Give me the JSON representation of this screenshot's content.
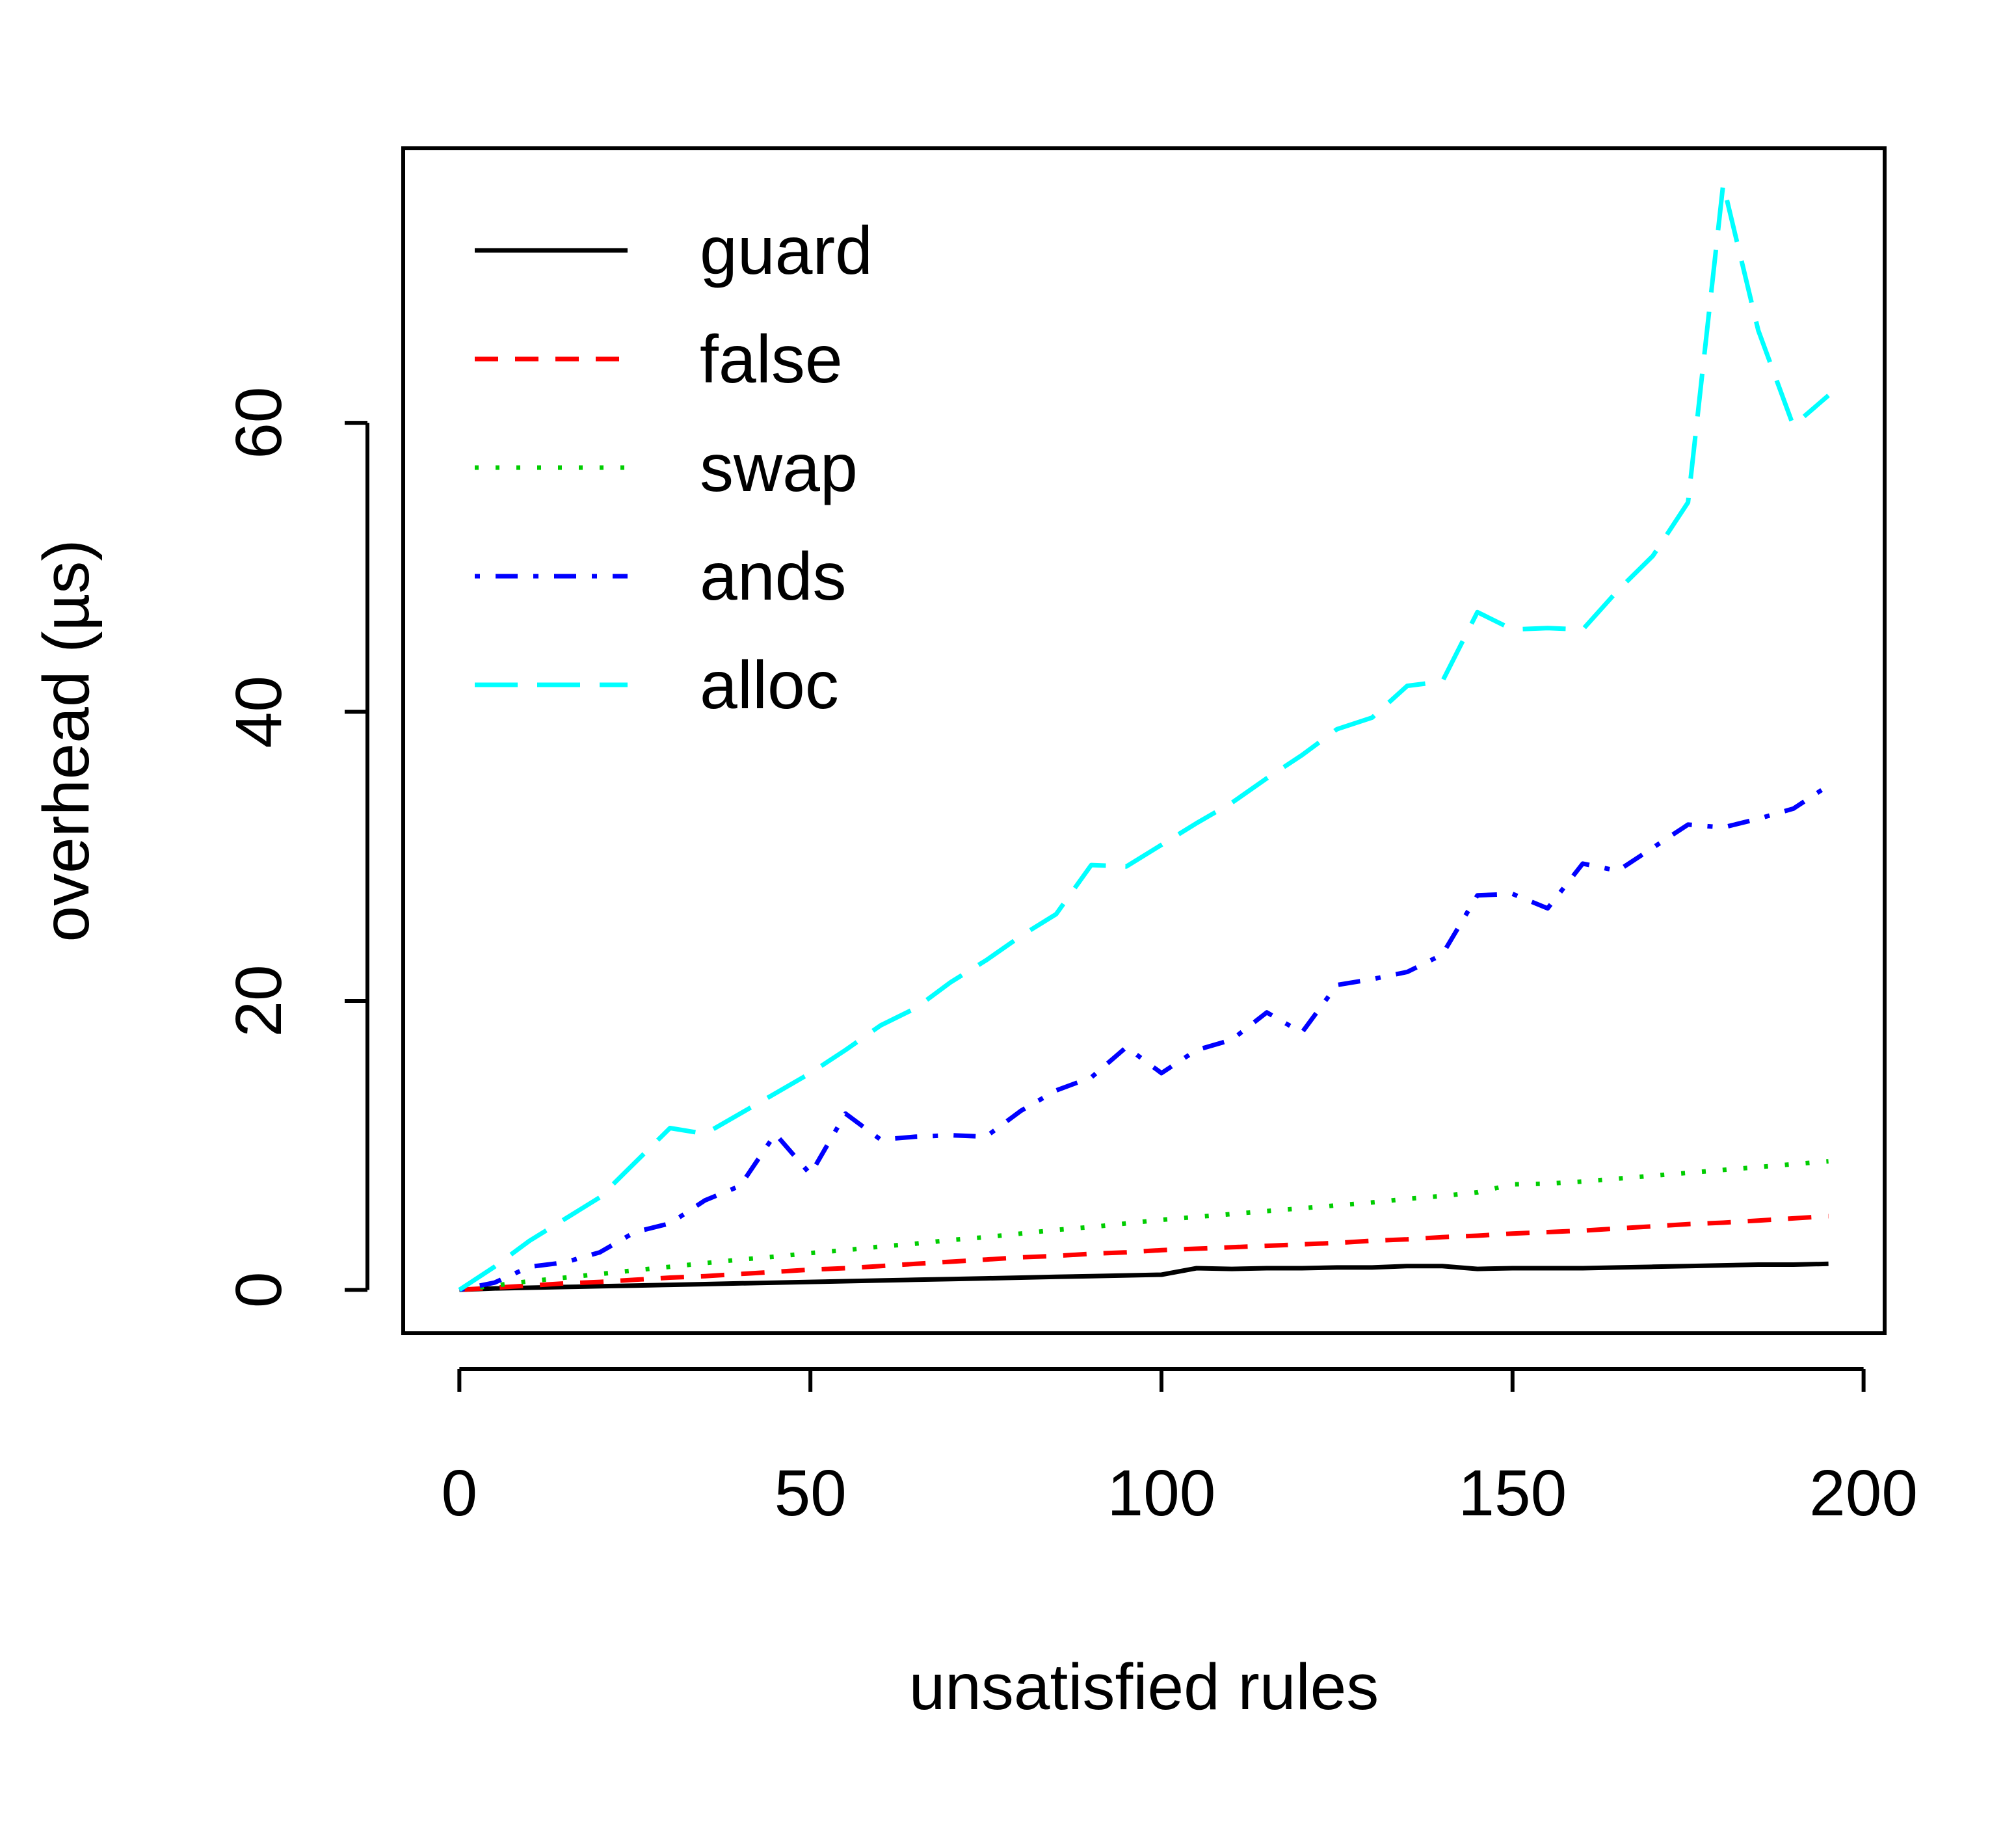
{
  "chart_data": {
    "type": "line",
    "title": "",
    "xlabel": "unsatisfied rules",
    "ylabel": "overhead (µs)",
    "xlim": [
      -8,
      203
    ],
    "ylim": [
      -3,
      79
    ],
    "x_ticks": [
      0,
      50,
      100,
      150,
      200
    ],
    "y_ticks": [
      0,
      20,
      40,
      60
    ],
    "grid": false,
    "legend_position": "top-left",
    "x": [
      0,
      5,
      10,
      15,
      20,
      25,
      30,
      35,
      40,
      45,
      50,
      55,
      60,
      65,
      70,
      75,
      80,
      85,
      90,
      95,
      100,
      105,
      110,
      115,
      120,
      125,
      130,
      135,
      140,
      145,
      150,
      155,
      160,
      165,
      170,
      175,
      180,
      185,
      190,
      195
    ],
    "series": [
      {
        "name": "guard",
        "color": "#000000",
        "dash": "solid",
        "values": [
          0,
          0.1,
          0.15,
          0.2,
          0.25,
          0.3,
          0.35,
          0.4,
          0.45,
          0.5,
          0.55,
          0.6,
          0.65,
          0.7,
          0.75,
          0.8,
          0.85,
          0.9,
          0.95,
          1.0,
          1.05,
          1.5,
          1.45,
          1.5,
          1.5,
          1.55,
          1.55,
          1.65,
          1.65,
          1.45,
          1.5,
          1.5,
          1.5,
          1.55,
          1.6,
          1.65,
          1.7,
          1.75,
          1.75,
          1.8
        ]
      },
      {
        "name": "false",
        "color": "#ff0000",
        "dash": "dashed",
        "values": [
          0,
          0.15,
          0.3,
          0.45,
          0.55,
          0.7,
          0.85,
          0.95,
          1.1,
          1.25,
          1.4,
          1.5,
          1.65,
          1.8,
          1.95,
          2.1,
          2.25,
          2.35,
          2.5,
          2.6,
          2.75,
          2.85,
          2.95,
          3.05,
          3.15,
          3.25,
          3.4,
          3.5,
          3.65,
          3.75,
          3.9,
          4.0,
          4.1,
          4.25,
          4.4,
          4.55,
          4.65,
          4.8,
          4.95,
          5.1
        ]
      },
      {
        "name": "swap",
        "color": "#00cd00",
        "dash": "dotted",
        "values": [
          0,
          0.3,
          0.6,
          0.85,
          1.1,
          1.35,
          1.6,
          1.85,
          2.1,
          2.3,
          2.55,
          2.75,
          3.0,
          3.2,
          3.45,
          3.65,
          3.9,
          4.15,
          4.35,
          4.6,
          4.85,
          5.05,
          5.25,
          5.45,
          5.65,
          5.85,
          6.05,
          6.3,
          6.5,
          6.75,
          7.3,
          7.35,
          7.5,
          7.7,
          7.9,
          8.1,
          8.3,
          8.5,
          8.7,
          8.9
        ]
      },
      {
        "name": "ands",
        "color": "#0000ff",
        "dash": "dotdash",
        "values": [
          0,
          0.5,
          1.6,
          1.9,
          2.6,
          4.0,
          4.6,
          6.2,
          7.2,
          10.8,
          8.0,
          12.2,
          10.4,
          10.6,
          10.7,
          10.6,
          12.4,
          13.8,
          14.7,
          16.8,
          15.0,
          16.6,
          17.3,
          19.2,
          17.8,
          21.1,
          21.5,
          22.0,
          23.2,
          27.3,
          27.4,
          26.4,
          29.5,
          29.0,
          30.6,
          32.2,
          32.0,
          32.6,
          33.3,
          34.9
        ]
      },
      {
        "name": "alloc",
        "color": "#00ffff",
        "dash": "longdash",
        "values": [
          0,
          1.6,
          3.4,
          4.9,
          6.4,
          8.8,
          11.2,
          10.8,
          12.2,
          13.6,
          15.0,
          16.6,
          18.3,
          19.5,
          21.3,
          22.8,
          24.5,
          26.0,
          29.4,
          29.3,
          30.8,
          32.3,
          33.7,
          35.4,
          37.0,
          38.8,
          39.6,
          41.8,
          42.1,
          46.9,
          45.7,
          45.8,
          45.7,
          48.4,
          50.8,
          54.5,
          76.5,
          66.4,
          59.8,
          61.9
        ]
      }
    ]
  }
}
